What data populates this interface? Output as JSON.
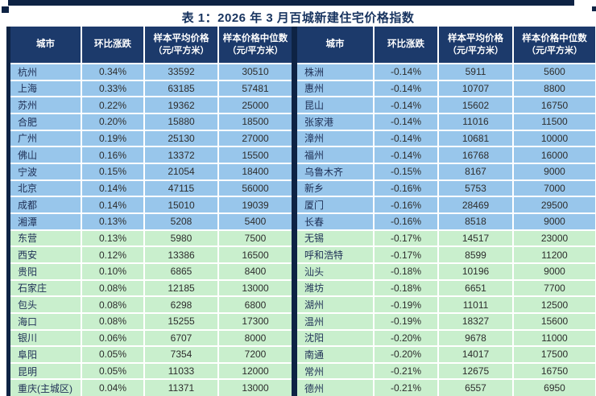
{
  "page": {
    "title": "表 1：2026 年 3 月百城新建住宅价格指数"
  },
  "columns": [
    {
      "key": "city",
      "label": "城市",
      "sub": ""
    },
    {
      "key": "change",
      "label": "环比涨跌",
      "sub": ""
    },
    {
      "key": "avg",
      "label": "样本平均价格",
      "sub": "（元/平方米）"
    },
    {
      "key": "median",
      "label": "样本价格中位数",
      "sub": "（元/平方米）"
    }
  ],
  "tables": [
    {
      "name": "left-price-table",
      "rows": [
        {
          "city": "杭州",
          "change": "0.34%",
          "avg": "33592",
          "median": "30510",
          "tone": "blue"
        },
        {
          "city": "上海",
          "change": "0.33%",
          "avg": "63185",
          "median": "57481",
          "tone": "blue"
        },
        {
          "city": "苏州",
          "change": "0.22%",
          "avg": "19362",
          "median": "25000",
          "tone": "blue"
        },
        {
          "city": "合肥",
          "change": "0.20%",
          "avg": "15880",
          "median": "18500",
          "tone": "blue"
        },
        {
          "city": "广州",
          "change": "0.19%",
          "avg": "25130",
          "median": "27000",
          "tone": "blue"
        },
        {
          "city": "佛山",
          "change": "0.16%",
          "avg": "13372",
          "median": "15500",
          "tone": "blue"
        },
        {
          "city": "宁波",
          "change": "0.15%",
          "avg": "21054",
          "median": "18400",
          "tone": "blue"
        },
        {
          "city": "北京",
          "change": "0.14%",
          "avg": "47115",
          "median": "56000",
          "tone": "blue"
        },
        {
          "city": "成都",
          "change": "0.14%",
          "avg": "15010",
          "median": "19039",
          "tone": "blue"
        },
        {
          "city": "湘潭",
          "change": "0.13%",
          "avg": "5208",
          "median": "5400",
          "tone": "blue"
        },
        {
          "city": "东营",
          "change": "0.13%",
          "avg": "5980",
          "median": "7500",
          "tone": "green"
        },
        {
          "city": "西安",
          "change": "0.12%",
          "avg": "13386",
          "median": "16500",
          "tone": "green"
        },
        {
          "city": "贵阳",
          "change": "0.10%",
          "avg": "6865",
          "median": "8400",
          "tone": "green"
        },
        {
          "city": "石家庄",
          "change": "0.08%",
          "avg": "12185",
          "median": "13000",
          "tone": "green"
        },
        {
          "city": "包头",
          "change": "0.08%",
          "avg": "6298",
          "median": "6800",
          "tone": "green"
        },
        {
          "city": "海口",
          "change": "0.08%",
          "avg": "15255",
          "median": "17300",
          "tone": "green"
        },
        {
          "city": "银川",
          "change": "0.06%",
          "avg": "6707",
          "median": "8000",
          "tone": "green"
        },
        {
          "city": "阜阳",
          "change": "0.05%",
          "avg": "7354",
          "median": "7200",
          "tone": "green"
        },
        {
          "city": "昆明",
          "change": "0.05%",
          "avg": "11033",
          "median": "12000",
          "tone": "green"
        },
        {
          "city": "重庆(主城区)",
          "change": "0.04%",
          "avg": "11371",
          "median": "13000",
          "tone": "green"
        }
      ]
    },
    {
      "name": "right-price-table",
      "rows": [
        {
          "city": "株洲",
          "change": "-0.14%",
          "avg": "5911",
          "median": "5600",
          "tone": "blue"
        },
        {
          "city": "惠州",
          "change": "-0.14%",
          "avg": "10707",
          "median": "8800",
          "tone": "blue"
        },
        {
          "city": "昆山",
          "change": "-0.14%",
          "avg": "15602",
          "median": "16750",
          "tone": "blue"
        },
        {
          "city": "张家港",
          "change": "-0.14%",
          "avg": "11016",
          "median": "11500",
          "tone": "blue"
        },
        {
          "city": "漳州",
          "change": "-0.14%",
          "avg": "10681",
          "median": "10000",
          "tone": "blue"
        },
        {
          "city": "福州",
          "change": "-0.14%",
          "avg": "16768",
          "median": "16000",
          "tone": "blue"
        },
        {
          "city": "乌鲁木齐",
          "change": "-0.15%",
          "avg": "8167",
          "median": "9000",
          "tone": "blue"
        },
        {
          "city": "新乡",
          "change": "-0.16%",
          "avg": "5753",
          "median": "7000",
          "tone": "blue"
        },
        {
          "city": "厦门",
          "change": "-0.16%",
          "avg": "28469",
          "median": "29500",
          "tone": "blue"
        },
        {
          "city": "长春",
          "change": "-0.16%",
          "avg": "8518",
          "median": "9000",
          "tone": "blue"
        },
        {
          "city": "无锡",
          "change": "-0.17%",
          "avg": "14517",
          "median": "23000",
          "tone": "green"
        },
        {
          "city": "呼和浩特",
          "change": "-0.17%",
          "avg": "8599",
          "median": "11200",
          "tone": "green"
        },
        {
          "city": "汕头",
          "change": "-0.18%",
          "avg": "10196",
          "median": "9000",
          "tone": "green"
        },
        {
          "city": "潍坊",
          "change": "-0.18%",
          "avg": "6651",
          "median": "7700",
          "tone": "green"
        },
        {
          "city": "湖州",
          "change": "-0.19%",
          "avg": "11011",
          "median": "12500",
          "tone": "green"
        },
        {
          "city": "温州",
          "change": "-0.19%",
          "avg": "18327",
          "median": "15600",
          "tone": "green"
        },
        {
          "city": "沈阳",
          "change": "-0.20%",
          "avg": "9678",
          "median": "11000",
          "tone": "green"
        },
        {
          "city": "南通",
          "change": "-0.20%",
          "avg": "14017",
          "median": "17500",
          "tone": "green"
        },
        {
          "city": "常州",
          "change": "-0.21%",
          "avg": "12675",
          "median": "16750",
          "tone": "green"
        },
        {
          "city": "德州",
          "change": "-0.21%",
          "avg": "6557",
          "median": "6950",
          "tone": "green"
        }
      ]
    }
  ],
  "colors": {
    "header_bg": "#1c3a6b",
    "row_blue": "#98c6eb",
    "row_green": "#c9efcd",
    "dark": "#0e2344",
    "title_text": "#17335f",
    "city_text": "#1e2f55",
    "value_text": "#2d2d2d"
  }
}
